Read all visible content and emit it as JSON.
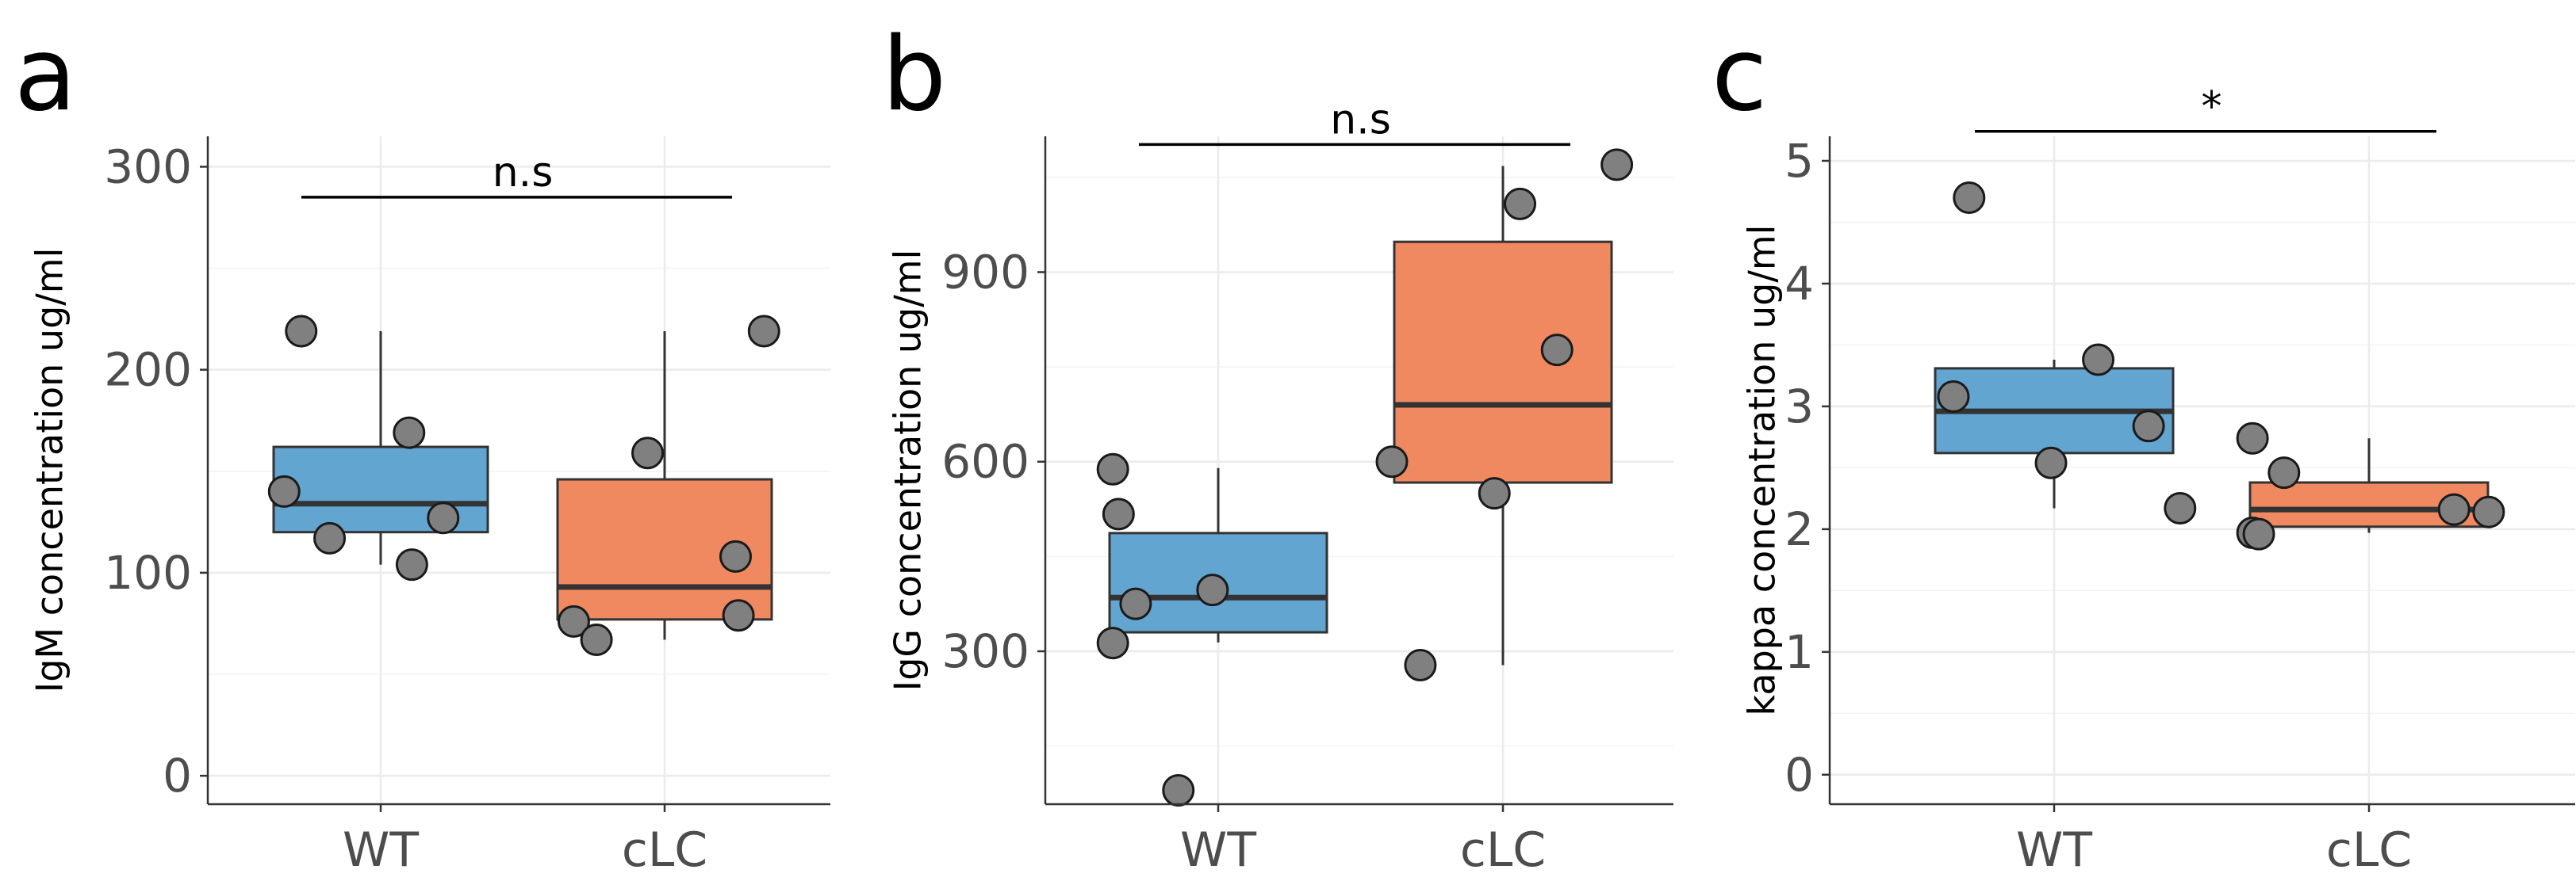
{
  "chart_data": [
    {
      "panel": "a",
      "type": "box",
      "ylabel": "IgM concentration ug/ml",
      "categories": [
        "WT",
        "cLC"
      ],
      "ylim": [
        -14,
        315
      ],
      "yticks": [
        0,
        100,
        200,
        300
      ],
      "grid": true,
      "significance": "n.s",
      "significance_y": 285,
      "fill_colors": [
        "#62a5d1",
        "#f0895f"
      ],
      "boxes": [
        {
          "category": "WT",
          "q1": 120,
          "median": 134,
          "q3": 162,
          "whisker_low": 104,
          "whisker_high": 219
        },
        {
          "category": "cLC",
          "q1": 77,
          "median": 93,
          "q3": 146,
          "whisker_low": 67,
          "whisker_high": 219
        }
      ],
      "points": [
        {
          "category": "WT",
          "jitter": -0.28,
          "value": 219
        },
        {
          "category": "WT",
          "jitter": -0.34,
          "value": 140
        },
        {
          "category": "WT",
          "jitter": -0.18,
          "value": 117
        },
        {
          "category": "WT",
          "jitter": 0.1,
          "value": 169
        },
        {
          "category": "WT",
          "jitter": 0.22,
          "value": 127
        },
        {
          "category": "WT",
          "jitter": 0.11,
          "value": 104
        },
        {
          "category": "cLC",
          "jitter": -0.06,
          "value": 159
        },
        {
          "category": "cLC",
          "jitter": 0.35,
          "value": 219
        },
        {
          "category": "cLC",
          "jitter": 0.25,
          "value": 108
        },
        {
          "category": "cLC",
          "jitter": 0.26,
          "value": 79
        },
        {
          "category": "cLC",
          "jitter": -0.32,
          "value": 76
        },
        {
          "category": "cLC",
          "jitter": -0.24,
          "value": 67
        }
      ]
    },
    {
      "panel": "b",
      "type": "box",
      "ylabel": "IgG concentration ug/ml",
      "categories": [
        "WT",
        "cLC"
      ],
      "ylim": [
        58,
        1115
      ],
      "yticks": [
        300,
        600,
        900
      ],
      "grid": true,
      "significance": "n.s",
      "significance_y": 1102,
      "fill_colors": [
        "#62a5d1",
        "#f0895f"
      ],
      "boxes": [
        {
          "category": "WT",
          "q1": 330,
          "median": 385,
          "q3": 487,
          "whisker_low": 314,
          "whisker_high": 590
        },
        {
          "category": "cLC",
          "q1": 567,
          "median": 690,
          "q3": 948,
          "whisker_low": 278,
          "whisker_high": 1068
        }
      ],
      "points": [
        {
          "category": "WT",
          "jitter": -0.37,
          "value": 588
        },
        {
          "category": "WT",
          "jitter": -0.35,
          "value": 517
        },
        {
          "category": "WT",
          "jitter": -0.29,
          "value": 375
        },
        {
          "category": "WT",
          "jitter": -0.37,
          "value": 313
        },
        {
          "category": "WT",
          "jitter": -0.14,
          "value": 80
        },
        {
          "category": "WT",
          "jitter": -0.02,
          "value": 397
        },
        {
          "category": "cLC",
          "jitter": -0.39,
          "value": 600
        },
        {
          "category": "cLC",
          "jitter": 0.06,
          "value": 1008
        },
        {
          "category": "cLC",
          "jitter": 0.19,
          "value": 777
        },
        {
          "category": "cLC",
          "jitter": -0.03,
          "value": 550
        },
        {
          "category": "cLC",
          "jitter": -0.29,
          "value": 278
        },
        {
          "category": "cLC",
          "jitter": 0.4,
          "value": 1070
        }
      ]
    },
    {
      "panel": "c",
      "type": "box",
      "ylabel": "kappa concentration ug/ml",
      "categories": [
        "WT",
        "cLC"
      ],
      "ylim": [
        -0.24,
        5.2
      ],
      "yticks": [
        0,
        1,
        2,
        3,
        4,
        5
      ],
      "grid": true,
      "significance": "*",
      "significance_y": 5.24,
      "fill_colors": [
        "#62a5d1",
        "#f0895f"
      ],
      "boxes": [
        {
          "category": "WT",
          "q1": 2.62,
          "median": 2.96,
          "q3": 3.31,
          "whisker_low": 2.17,
          "whisker_high": 3.38
        },
        {
          "category": "cLC",
          "q1": 2.02,
          "median": 2.16,
          "q3": 2.38,
          "whisker_low": 1.97,
          "whisker_high": 2.74
        }
      ],
      "points": [
        {
          "category": "WT",
          "jitter": -0.27,
          "value": 4.7
        },
        {
          "category": "WT",
          "jitter": -0.32,
          "value": 3.08
        },
        {
          "category": "WT",
          "jitter": 0.14,
          "value": 3.38
        },
        {
          "category": "WT",
          "jitter": -0.01,
          "value": 2.54
        },
        {
          "category": "WT",
          "jitter": 0.3,
          "value": 2.84
        },
        {
          "category": "WT",
          "jitter": 0.4,
          "value": 2.17
        },
        {
          "category": "cLC",
          "jitter": -0.37,
          "value": 2.74
        },
        {
          "category": "cLC",
          "jitter": -0.27,
          "value": 2.46
        },
        {
          "category": "cLC",
          "jitter": -0.37,
          "value": 1.97
        },
        {
          "category": "cLC",
          "jitter": -0.35,
          "value": 1.96
        },
        {
          "category": "cLC",
          "jitter": 0.27,
          "value": 2.16
        },
        {
          "category": "cLC",
          "jitter": 0.38,
          "value": 2.14
        }
      ]
    }
  ]
}
